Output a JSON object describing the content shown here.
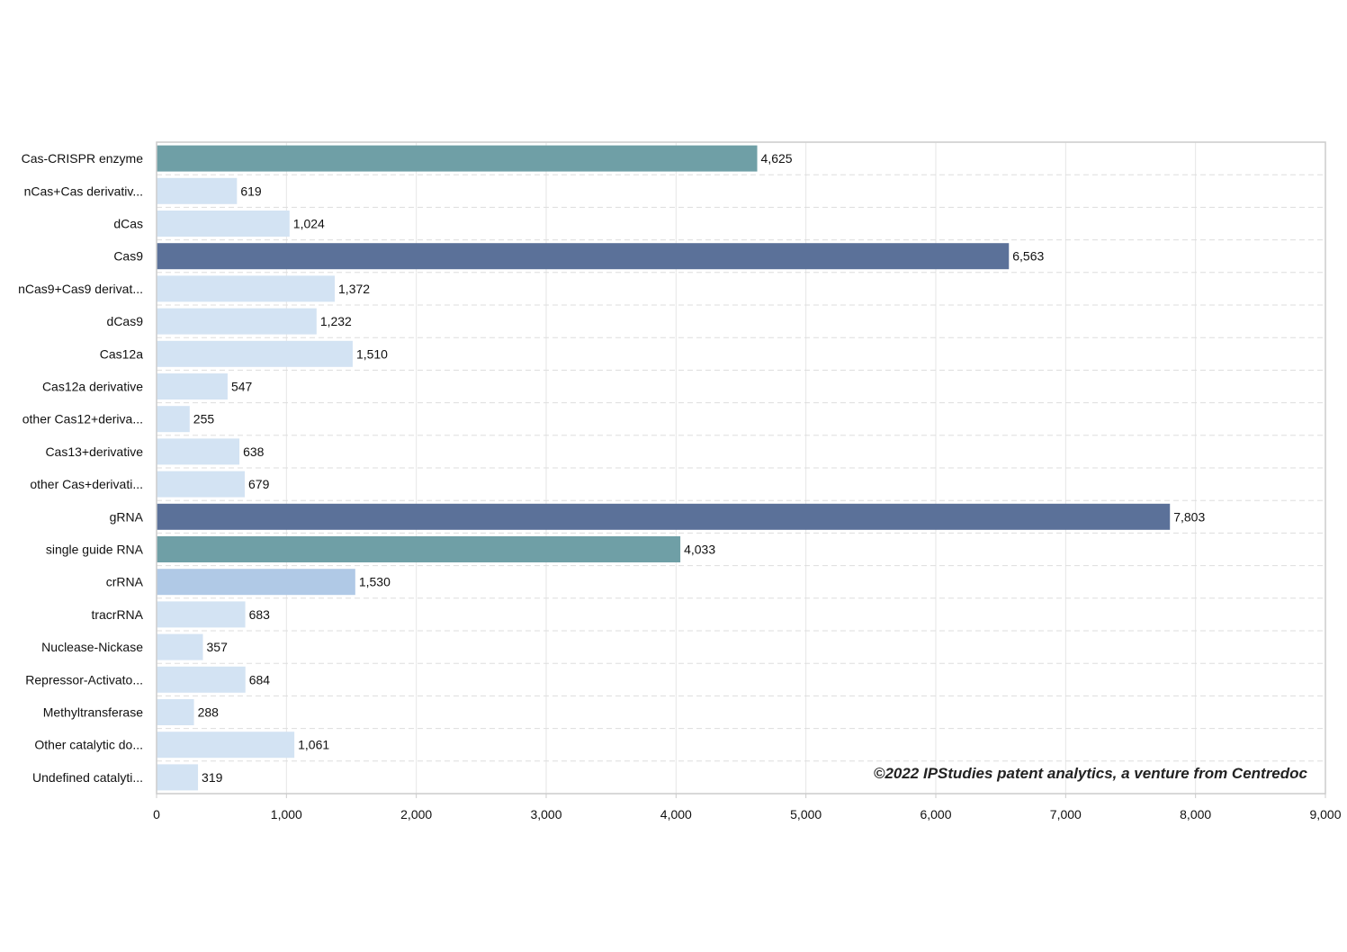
{
  "chart_data": {
    "type": "bar",
    "orientation": "horizontal",
    "categories": [
      "Cas-CRISPR enzyme",
      "nCas+Cas derivativ...",
      "dCas",
      "Cas9",
      "nCas9+Cas9 derivat...",
      "dCas9",
      "Cas12a",
      "Cas12a derivative",
      "other Cas12+deriva...",
      "Cas13+derivative",
      "other Cas+derivati...",
      "gRNA",
      "single guide RNA",
      "crRNA",
      "tracrRNA",
      "Nuclease-Nickase",
      "Repressor-Activato...",
      "Methyltransferase",
      "Other catalytic do...",
      "Undefined catalyti..."
    ],
    "values": [
      4625,
      619,
      1024,
      6563,
      1372,
      1232,
      1510,
      547,
      255,
      638,
      679,
      7803,
      4033,
      1530,
      683,
      357,
      684,
      288,
      1061,
      319
    ],
    "value_labels": [
      "4,625",
      "619",
      "1,024",
      "6,563",
      "1,372",
      "1,232",
      "1,510",
      "547",
      "255",
      "638",
      "679",
      "7,803",
      "4,033",
      "1,530",
      "683",
      "357",
      "684",
      "288",
      "1,061",
      "319"
    ],
    "bar_colors": [
      "#6f9fa6",
      "#d3e3f3",
      "#d3e3f3",
      "#5b7199",
      "#d3e3f3",
      "#d3e3f3",
      "#d3e3f3",
      "#d3e3f3",
      "#d3e3f3",
      "#d3e3f3",
      "#d3e3f3",
      "#5b7199",
      "#6f9fa6",
      "#b0c9e6",
      "#d3e3f3",
      "#d3e3f3",
      "#d3e3f3",
      "#d3e3f3",
      "#d3e3f3",
      "#d3e3f3"
    ],
    "xlim": [
      0,
      9000
    ],
    "xticks": [
      0,
      1000,
      2000,
      3000,
      4000,
      5000,
      6000,
      7000,
      8000,
      9000
    ],
    "xtick_labels": [
      "0",
      "1,000",
      "2,000",
      "3,000",
      "4,000",
      "5,000",
      "6,000",
      "7,000",
      "8,000",
      "9,000"
    ],
    "title": "",
    "xlabel": "",
    "ylabel": "",
    "grid": true,
    "legend": "none"
  },
  "annotation": {
    "copyright": "©2022 IPStudies patent analytics, a venture from Centredoc"
  },
  "colors": {
    "axis": "#cccccc",
    "grid_vertical": "#e6e6e6",
    "grid_horizontal": "#dddddd",
    "text": "#111111"
  }
}
